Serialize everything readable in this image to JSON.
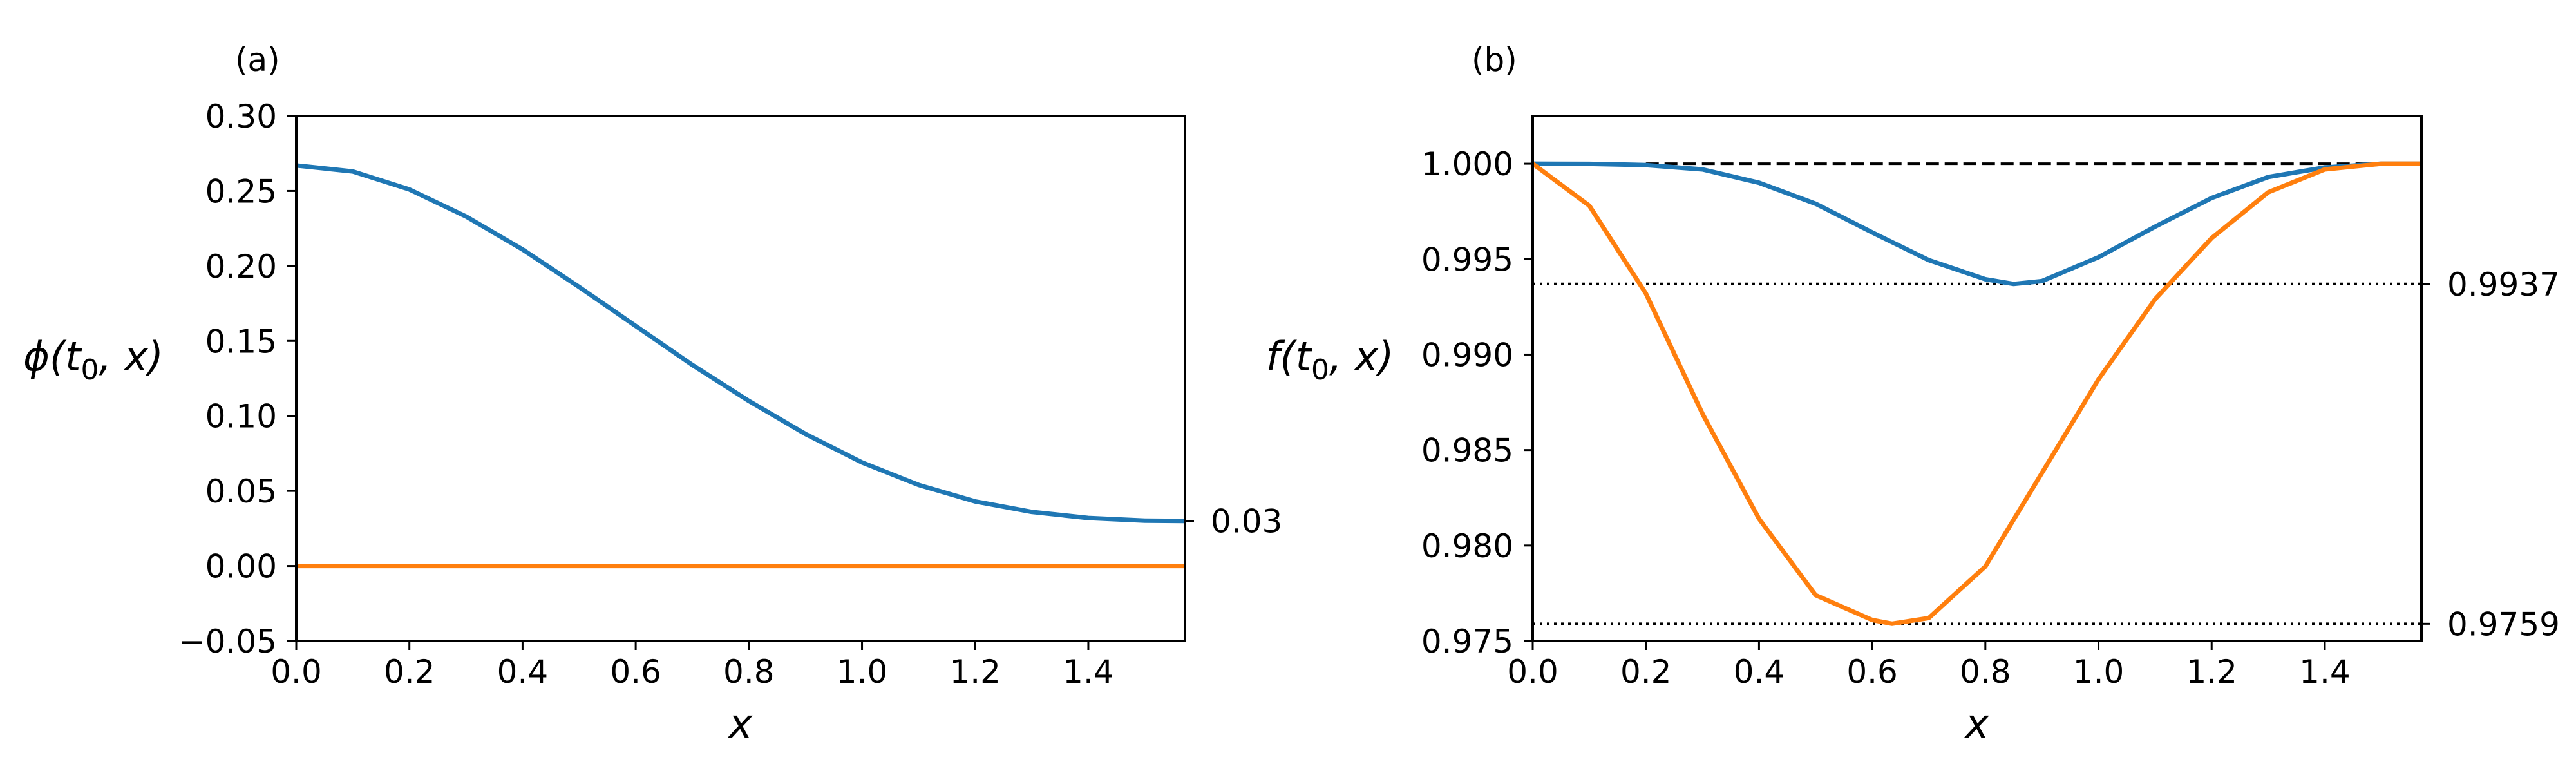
{
  "chart_data": [
    {
      "type": "line",
      "panel_label": "(a)",
      "ylabel_main": "ϕ(t",
      "ylabel_sub": "0",
      "ylabel_tail": ", x)",
      "xlabel": "x",
      "xlim": [
        0,
        1.5708
      ],
      "ylim": [
        -0.05,
        0.3
      ],
      "xticks": [
        "0.0",
        "0.2",
        "0.4",
        "0.6",
        "0.8",
        "1.0",
        "1.2",
        "1.4"
      ],
      "xtick_values": [
        0,
        0.2,
        0.4,
        0.6,
        0.8,
        1.0,
        1.2,
        1.4
      ],
      "yticks": [
        "0.30",
        "0.25",
        "0.20",
        "0.15",
        "0.10",
        "0.05",
        "0.00",
        "−0.05"
      ],
      "ytick_values": [
        0.3,
        0.25,
        0.2,
        0.15,
        0.1,
        0.05,
        0.0,
        -0.05
      ],
      "right_annotations": [
        {
          "value": 0.03,
          "label": "0.03"
        }
      ],
      "reference_lines": [],
      "series": [
        {
          "name": "blue",
          "color": "#1f77b4",
          "x": [
            0,
            0.1,
            0.2,
            0.3,
            0.4,
            0.5,
            0.6,
            0.7,
            0.8,
            0.9,
            1.0,
            1.1,
            1.2,
            1.3,
            1.4,
            1.5,
            1.5708
          ],
          "y": [
            0.267,
            0.263,
            0.251,
            0.233,
            0.211,
            0.186,
            0.16,
            0.134,
            0.11,
            0.088,
            0.069,
            0.054,
            0.043,
            0.036,
            0.032,
            0.0302,
            0.03
          ]
        },
        {
          "name": "orange",
          "color": "#ff7f0e",
          "x": [
            0,
            0.5,
            1.0,
            1.5708
          ],
          "y": [
            0,
            0,
            0,
            0
          ]
        }
      ]
    },
    {
      "type": "line",
      "panel_label": "(b)",
      "ylabel_main": "f(t",
      "ylabel_sub": "0",
      "ylabel_tail": ", x)",
      "xlabel": "x",
      "xlim": [
        0,
        1.5708
      ],
      "ylim": [
        0.975,
        1.0025
      ],
      "xticks": [
        "0.0",
        "0.2",
        "0.4",
        "0.6",
        "0.8",
        "1.0",
        "1.2",
        "1.4"
      ],
      "xtick_values": [
        0,
        0.2,
        0.4,
        0.6,
        0.8,
        1.0,
        1.2,
        1.4
      ],
      "yticks": [
        "1.000",
        "0.995",
        "0.990",
        "0.985",
        "0.980",
        "0.975"
      ],
      "ytick_values": [
        1.0,
        0.995,
        0.99,
        0.985,
        0.98,
        0.975
      ],
      "right_annotations": [
        {
          "value": 0.9937,
          "label": "0.9937"
        },
        {
          "value": 0.9759,
          "label": "0.9759"
        }
      ],
      "reference_lines": [
        {
          "style": "dashed",
          "color": "#000000",
          "y": 1.0,
          "x": [
            0.2,
            1.5708
          ]
        },
        {
          "style": "dotted",
          "color": "#000000",
          "y": 0.9937,
          "x": [
            0,
            1.5708
          ]
        },
        {
          "style": "dotted",
          "color": "#000000",
          "y": 0.9759,
          "x": [
            0,
            1.5708
          ]
        }
      ],
      "series": [
        {
          "name": "blue",
          "color": "#1f77b4",
          "x": [
            0,
            0.1,
            0.2,
            0.3,
            0.4,
            0.5,
            0.6,
            0.7,
            0.8,
            0.85,
            0.9,
            1.0,
            1.1,
            1.2,
            1.3,
            1.4,
            1.5,
            1.5708
          ],
          "y": [
            1.0,
            0.99999,
            0.99993,
            0.9997,
            0.999,
            0.9979,
            0.9964,
            0.99495,
            0.99395,
            0.9937,
            0.99385,
            0.9951,
            0.9967,
            0.9982,
            0.9993,
            0.9998,
            1.0,
            1.0
          ]
        },
        {
          "name": "orange",
          "color": "#ff7f0e",
          "x": [
            0,
            0.1,
            0.2,
            0.3,
            0.4,
            0.5,
            0.6,
            0.635,
            0.7,
            0.8,
            0.9,
            1.0,
            1.1,
            1.2,
            1.3,
            1.4,
            1.5,
            1.5708
          ],
          "y": [
            1.0,
            0.9978,
            0.9932,
            0.9869,
            0.9814,
            0.9774,
            0.9761,
            0.9759,
            0.9762,
            0.9789,
            0.9838,
            0.9887,
            0.9929,
            0.9961,
            0.9985,
            0.9997,
            1.0,
            1.0
          ]
        }
      ]
    }
  ]
}
